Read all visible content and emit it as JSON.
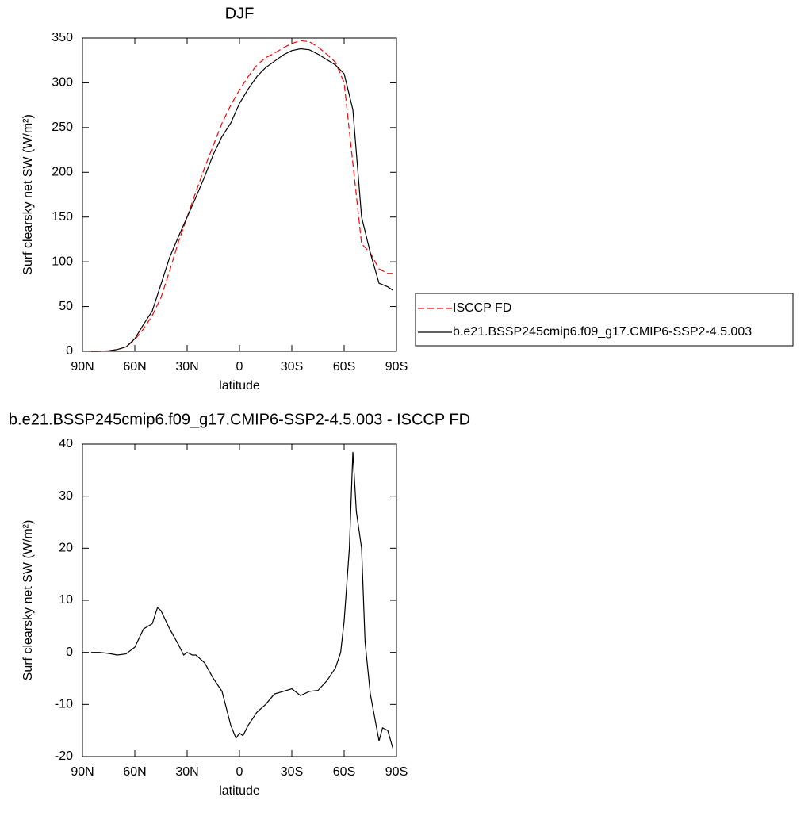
{
  "chart_data": [
    {
      "type": "line",
      "title": "DJF",
      "xlabel": "latitude",
      "ylabel": "Surf clearsky net SW (W/m²)",
      "x": [
        85,
        80,
        75,
        70,
        65,
        60,
        55,
        50,
        45,
        40,
        35,
        30,
        25,
        20,
        15,
        10,
        5,
        0,
        -5,
        -10,
        -15,
        -20,
        -25,
        -30,
        -35,
        -40,
        -45,
        -50,
        -55,
        -60,
        -65,
        -70,
        -75,
        -80,
        -85,
        -88
      ],
      "xlim": [
        90,
        -90
      ],
      "xticks": [
        {
          "value": 90,
          "label": "90N"
        },
        {
          "value": 60,
          "label": "60N"
        },
        {
          "value": 30,
          "label": "30N"
        },
        0,
        {
          "value": -30,
          "label": "30S"
        },
        {
          "value": -60,
          "label": "60S"
        },
        {
          "value": -90,
          "label": "90S"
        }
      ],
      "ylim": [
        0,
        350
      ],
      "yticks": [
        0,
        50,
        100,
        150,
        200,
        250,
        300,
        350
      ],
      "legend": "right",
      "series": [
        {
          "name": "ISCCP FD",
          "color": "#ff0000",
          "line_style": "dashed",
          "values": [
            0,
            0,
            0.5,
            2,
            5,
            13,
            25,
            40,
            60,
            90,
            122,
            150,
            178,
            205,
            230,
            255,
            275,
            292,
            307,
            320,
            328,
            333,
            339,
            344,
            347,
            346,
            340,
            332,
            323,
            300,
            210,
            120,
            110,
            92,
            87,
            87
          ]
        },
        {
          "name": "b.e21.BSSP245cmip6.f09_g17.CMIP6-SSP2-4.5.003",
          "color": "#000000",
          "line_style": "solid",
          "values": [
            0,
            0,
            0.5,
            2,
            5,
            14,
            30,
            45,
            75,
            105,
            128,
            150,
            172,
            195,
            220,
            240,
            255,
            277,
            293,
            307,
            317,
            324,
            331,
            336,
            338,
            337,
            332,
            326,
            320,
            310,
            270,
            150,
            110,
            76,
            72,
            68
          ]
        }
      ]
    },
    {
      "type": "line",
      "title": "b.e21.BSSP245cmip6.f09_g17.CMIP6-SSP2-4.5.003 - ISCCP FD",
      "xlabel": "latitude",
      "ylabel": "Surf clearsky net SW (W/m²)",
      "x": [
        85,
        80,
        75,
        70,
        65,
        60,
        55,
        50,
        47,
        45,
        40,
        35,
        32,
        30,
        27,
        25,
        20,
        15,
        10,
        5,
        2,
        0,
        -2,
        -5,
        -10,
        -15,
        -20,
        -25,
        -30,
        -35,
        -40,
        -45,
        -50,
        -55,
        -58,
        -60,
        -63,
        -65,
        -67,
        -70,
        -72,
        -75,
        -80,
        -82,
        -85,
        -88
      ],
      "xlim": [
        90,
        -90
      ],
      "xticks": [
        {
          "value": 90,
          "label": "90N"
        },
        {
          "value": 60,
          "label": "60N"
        },
        {
          "value": 30,
          "label": "30N"
        },
        0,
        {
          "value": -30,
          "label": "30S"
        },
        {
          "value": -60,
          "label": "60S"
        },
        {
          "value": -90,
          "label": "90S"
        }
      ],
      "ylim": [
        -20,
        40
      ],
      "yticks": [
        -20,
        -10,
        0,
        10,
        20,
        30,
        40
      ],
      "color": "#000000",
      "values": [
        0,
        0,
        -0.2,
        -0.5,
        -0.3,
        1,
        4.5,
        5.5,
        8.6,
        8,
        4.5,
        1.5,
        -0.5,
        0,
        -0.5,
        -0.5,
        -2,
        -5,
        -7.5,
        -14,
        -16.5,
        -15.5,
        -16,
        -14,
        -11.5,
        -10,
        -8,
        -7.5,
        -7,
        -8.3,
        -7.5,
        -7.3,
        -5.5,
        -3,
        0,
        6,
        20,
        38.5,
        27,
        20,
        2,
        -8,
        -17,
        -14.5,
        -15,
        -18.5
      ]
    }
  ]
}
